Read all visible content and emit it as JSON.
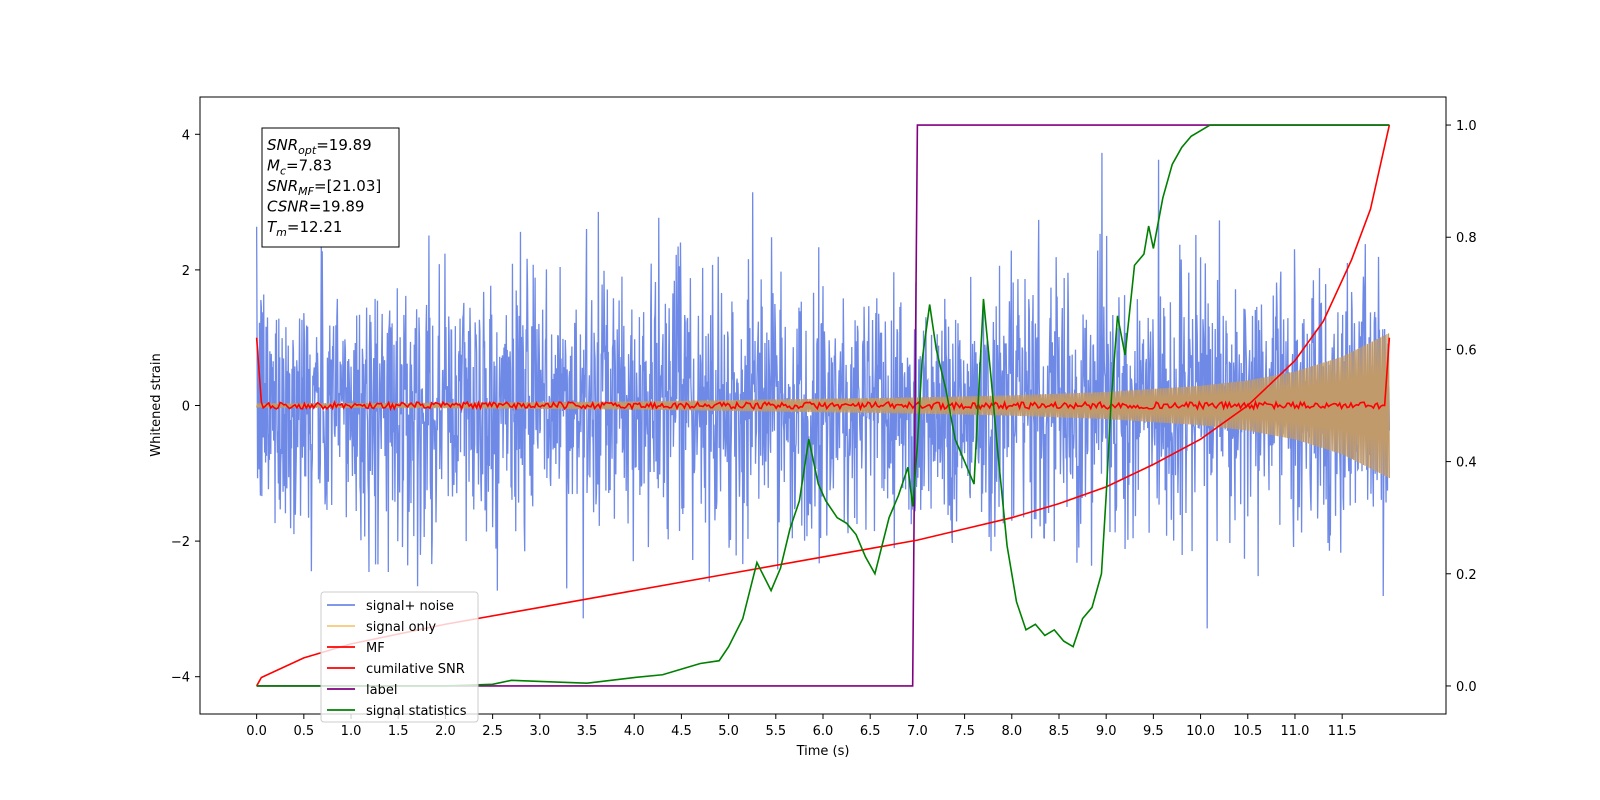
{
  "chart_data": {
    "type": "line",
    "xlabel": "Time (s)",
    "ylabel": "Whitened strain",
    "xlim": [
      -0.6,
      12.6
    ],
    "ylim": [
      -4.55,
      4.55
    ],
    "ylim_right": [
      -0.05,
      1.05
    ],
    "x_ticks": [
      "0.0",
      "0.5",
      "1.0",
      "1.5",
      "2.0",
      "2.5",
      "3.0",
      "3.5",
      "4.0",
      "4.5",
      "5.0",
      "5.5",
      "6.0",
      "6.5",
      "7.0",
      "7.5",
      "8.0",
      "8.5",
      "9.0",
      "9.5",
      "10.0",
      "10.5",
      "11.0",
      "11.5"
    ],
    "y_ticks_left": [
      "4",
      "2",
      "0",
      "−2",
      "−4"
    ],
    "y_ticks_right": [
      "1.0",
      "0.8",
      "0.6",
      "0.4",
      "0.2",
      "0.0"
    ],
    "grid": false,
    "legend_position": "bottom-left",
    "infobox": {
      "lines": [
        {
          "sym": "SNR",
          "sub": "opt",
          "val": "=19.89"
        },
        {
          "sym": "M",
          "sub": "c",
          "val": "=7.83"
        },
        {
          "sym": "SNR",
          "sub": "MF",
          "val": "=[21.03]"
        },
        {
          "sym": "CSNR",
          "sub": "",
          "val": "=19.89"
        },
        {
          "sym": "T",
          "sub": "m",
          "val": "=12.21"
        }
      ]
    },
    "series": [
      {
        "name": "signal+ noise",
        "axis": "left",
        "color": "#6f8ae6",
        "note_noise_sigma": 0.95,
        "envelope_max": 4.2
      },
      {
        "name": "signal only",
        "axis": "left",
        "color": "#f5c87a",
        "envelope_x": [
          0.0,
          2.0,
          4.0,
          6.0,
          7.0,
          8.0,
          9.0,
          10.0,
          10.5,
          11.0,
          11.5,
          12.0
        ],
        "envelope_y": [
          0.03,
          0.04,
          0.06,
          0.1,
          0.12,
          0.15,
          0.2,
          0.29,
          0.37,
          0.5,
          0.72,
          1.07
        ]
      },
      {
        "name": "MF",
        "axis": "left",
        "color": "#ff0000",
        "points": [
          [
            0.0,
            1.0
          ],
          [
            0.05,
            0.05
          ],
          [
            11.95,
            0.0
          ],
          [
            12.0,
            1.0
          ]
        ],
        "note_jitter": 0.05
      },
      {
        "name": "cumilative SNR",
        "axis": "right",
        "color": "#ff0000",
        "x": [
          0.0,
          0.05,
          0.5,
          1.0,
          2.0,
          3.0,
          4.0,
          5.0,
          6.0,
          6.5,
          7.0,
          7.5,
          8.0,
          8.5,
          9.0,
          9.5,
          10.0,
          10.5,
          11.0,
          11.3,
          11.6,
          11.8,
          12.0
        ],
        "y": [
          0.0,
          0.015,
          0.05,
          0.075,
          0.11,
          0.14,
          0.17,
          0.2,
          0.23,
          0.245,
          0.26,
          0.28,
          0.3,
          0.325,
          0.355,
          0.395,
          0.44,
          0.5,
          0.58,
          0.65,
          0.76,
          0.85,
          1.0
        ]
      },
      {
        "name": "label",
        "axis": "right",
        "color": "#800080",
        "x": [
          0.0,
          6.95,
          7.0,
          12.0
        ],
        "y": [
          0.0,
          0.0,
          1.0,
          1.0
        ]
      },
      {
        "name": "signal statistics",
        "axis": "right",
        "color": "#008000",
        "x": [
          0.0,
          0.5,
          1.0,
          1.5,
          2.0,
          2.5,
          2.7,
          3.0,
          3.5,
          4.0,
          4.3,
          4.5,
          4.7,
          4.9,
          5.0,
          5.15,
          5.3,
          5.45,
          5.55,
          5.65,
          5.75,
          5.85,
          5.95,
          6.03,
          6.15,
          6.25,
          6.35,
          6.45,
          6.55,
          6.7,
          6.8,
          6.9,
          6.95,
          7.0,
          7.05,
          7.13,
          7.2,
          7.3,
          7.4,
          7.5,
          7.6,
          7.7,
          7.78,
          7.85,
          7.95,
          8.05,
          8.15,
          8.25,
          8.35,
          8.45,
          8.55,
          8.65,
          8.75,
          8.85,
          8.95,
          9.0,
          9.05,
          9.12,
          9.2,
          9.3,
          9.4,
          9.45,
          9.5,
          9.6,
          9.7,
          9.8,
          9.9,
          10.0,
          10.1,
          10.3,
          10.6,
          11.0,
          11.5,
          12.0
        ],
        "y": [
          0.0,
          0.0,
          0.0,
          0.0,
          0.0,
          0.003,
          0.01,
          0.008,
          0.005,
          0.015,
          0.02,
          0.03,
          0.04,
          0.045,
          0.07,
          0.12,
          0.22,
          0.17,
          0.21,
          0.28,
          0.33,
          0.44,
          0.36,
          0.33,
          0.3,
          0.29,
          0.27,
          0.23,
          0.2,
          0.3,
          0.34,
          0.39,
          0.32,
          0.43,
          0.58,
          0.68,
          0.6,
          0.53,
          0.44,
          0.4,
          0.36,
          0.69,
          0.55,
          0.42,
          0.25,
          0.15,
          0.1,
          0.11,
          0.09,
          0.1,
          0.08,
          0.07,
          0.12,
          0.14,
          0.2,
          0.34,
          0.5,
          0.66,
          0.59,
          0.75,
          0.77,
          0.82,
          0.78,
          0.87,
          0.93,
          0.96,
          0.98,
          0.99,
          1.0,
          1.0,
          1.0,
          1.0,
          1.0,
          1.0
        ]
      }
    ]
  }
}
